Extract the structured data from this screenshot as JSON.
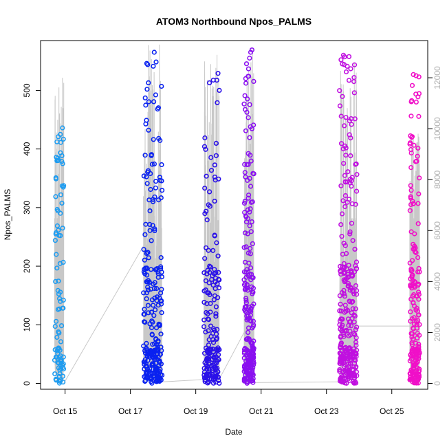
{
  "chart_data": {
    "type": "scatter",
    "title": "ATOM3 Northbound Npos_PALMS",
    "xlabel": "Date",
    "ylabel": "Npos_PALMS",
    "x_ticks": [
      "Oct 15",
      "Oct 17",
      "Oct 19",
      "Oct 21",
      "Oct 23",
      "Oct 25"
    ],
    "x_tick_days": [
      15,
      17,
      19,
      21,
      23,
      25
    ],
    "xlim_days": [
      14.25,
      26.1
    ],
    "ylim": [
      -10,
      585
    ],
    "y_ticks": [
      0,
      100,
      200,
      300,
      400,
      500
    ],
    "y2_ticks": [
      0,
      2000,
      4000,
      6000,
      8000,
      10000,
      12000
    ],
    "y2lim": [
      -230,
      13460
    ],
    "y2_color": "#b0b0b0",
    "grid": false,
    "series": [
      {
        "color": "#1e9cf0",
        "day_range": [
          14.68,
          14.96
        ],
        "summary": {
          "max": 436,
          "n": 90
        },
        "notable_points": [
          {
            "day": 14.92,
            "y": 436
          },
          {
            "day": 14.91,
            "y": 337
          },
          {
            "day": 14.72,
            "y": 255
          },
          {
            "day": 14.7,
            "y": 244
          },
          {
            "day": 14.73,
            "y": 220
          }
        ]
      },
      {
        "color": "#0a22f0",
        "day_range": [
          17.4,
          17.97
        ],
        "summary": {
          "max": 565,
          "n": 260
        },
        "notable_points": [
          {
            "day": 17.73,
            "y": 565
          },
          {
            "day": 17.55,
            "y": 513
          },
          {
            "day": 17.95,
            "y": 507
          }
        ]
      },
      {
        "color": "#2a10e8",
        "day_range": [
          19.25,
          19.72
        ],
        "summary": {
          "max": 529,
          "n": 180
        },
        "notable_points": [
          {
            "day": 19.68,
            "y": 529
          },
          {
            "day": 19.42,
            "y": 513
          }
        ]
      },
      {
        "color": "#8a10f0",
        "day_range": [
          20.48,
          20.78
        ],
        "summary": {
          "max": 569,
          "n": 240
        },
        "notable_points": [
          {
            "day": 20.72,
            "y": 569
          },
          {
            "day": 20.68,
            "y": 565
          },
          {
            "day": 20.62,
            "y": 524
          }
        ]
      },
      {
        "color": "#c010e0",
        "day_range": [
          23.4,
          23.93
        ],
        "summary": {
          "max": 560,
          "n": 300
        },
        "notable_points": [
          {
            "day": 23.52,
            "y": 560
          },
          {
            "day": 23.54,
            "y": 544
          },
          {
            "day": 23.84,
            "y": 515
          }
        ]
      },
      {
        "color": "#f010c8",
        "day_range": [
          25.55,
          25.85
        ],
        "summary": {
          "max": 527,
          "n": 200
        },
        "notable_points": [
          {
            "day": 25.66,
            "y": 527
          },
          {
            "day": 25.83,
            "y": 523
          }
        ]
      }
    ],
    "secondary_trace": {
      "color": "#c8c8c8",
      "axis": "right",
      "segments": [
        {
          "day_range": [
            14.68,
            14.96
          ],
          "peak": 12000
        },
        {
          "day_range": [
            17.4,
            17.97
          ],
          "peak": 13300
        },
        {
          "day_range": [
            19.25,
            19.72
          ],
          "peak": 12900
        },
        {
          "day_range": [
            20.48,
            20.78
          ],
          "peak": 13100
        },
        {
          "day_range": [
            23.4,
            23.93
          ],
          "peak": 12600
        },
        {
          "day_range": [
            25.55,
            25.85
          ],
          "peak": 9800
        }
      ],
      "connectors": [
        {
          "from": [
            14.96,
            0
          ],
          "to": [
            17.4,
            5400
          ]
        },
        {
          "from": [
            17.97,
            60
          ],
          "to": [
            19.25,
            150
          ]
        },
        {
          "from": [
            19.72,
            170
          ],
          "to": [
            20.48,
            2000
          ]
        },
        {
          "from": [
            20.78,
            30
          ],
          "to": [
            23.4,
            60
          ]
        },
        {
          "from": [
            23.93,
            2250
          ],
          "to": [
            25.55,
            2250
          ]
        }
      ]
    }
  }
}
